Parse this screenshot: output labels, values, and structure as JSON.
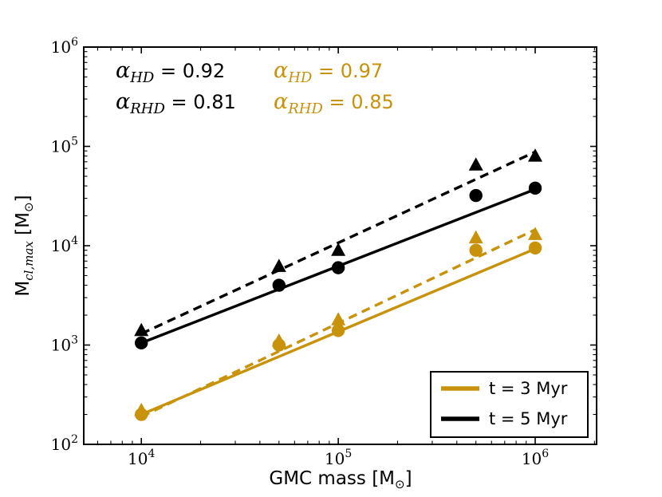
{
  "figure": {
    "background": "#ffffff",
    "axis_color": "#000000",
    "tick_label_color": "#000000"
  },
  "chart_data": {
    "type": "scatter",
    "title": "",
    "xlabel_parts": [
      {
        "t": "GMC mass [M",
        "style": "plain"
      },
      {
        "t": "⊙",
        "style": "sub"
      },
      {
        "t": "]",
        "style": "plain"
      }
    ],
    "ylabel_parts": [
      {
        "t": "M",
        "style": "plain"
      },
      {
        "t": "cl,max",
        "style": "sub-italic"
      },
      {
        "t": " [M",
        "style": "plain"
      },
      {
        "t": "⊙",
        "style": "sub"
      },
      {
        "t": "]",
        "style": "plain"
      }
    ],
    "xscale": "log",
    "yscale": "log",
    "xlim": [
      5100,
      2050000
    ],
    "ylim": [
      100,
      1000000
    ],
    "grid": false,
    "x_major_ticks": [
      {
        "value": 10000,
        "label": "10^4"
      },
      {
        "value": 100000,
        "label": "10^5"
      },
      {
        "value": 1000000,
        "label": "10^6"
      }
    ],
    "y_major_ticks": [
      {
        "value": 100,
        "label": "10^2"
      },
      {
        "value": 1000,
        "label": "10^3"
      },
      {
        "value": 10000,
        "label": "10^4"
      },
      {
        "value": 100000,
        "label": "10^5"
      },
      {
        "value": 1000000,
        "label": "10^6"
      }
    ],
    "x": [
      10000,
      50000,
      100000,
      500000,
      1000000
    ],
    "series": [
      {
        "name": "HD t = 3 Myr",
        "color": "#C8920A",
        "marker": "triangle",
        "linestyle": "dashed",
        "values": [
          220,
          1100,
          1800,
          12000,
          13000
        ],
        "fit": {
          "x": [
            10000,
            1000000
          ],
          "y": [
            190,
            14500
          ]
        },
        "alpha": "0.97"
      },
      {
        "name": "RHD t = 3 Myr",
        "color": "#C8920A",
        "marker": "circle",
        "linestyle": "solid",
        "values": [
          200,
          1000,
          1400,
          9000,
          9500
        ],
        "fit": {
          "x": [
            10000,
            1000000
          ],
          "y": [
            200,
            9300
          ]
        },
        "alpha": "0.85"
      },
      {
        "name": "HD t = 5 Myr",
        "color": "#000000",
        "marker": "triangle",
        "linestyle": "dashed",
        "values": [
          1400,
          6200,
          9000,
          65000,
          80000
        ],
        "fit": {
          "x": [
            10000,
            1000000
          ],
          "y": [
            1300,
            88000
          ]
        },
        "alpha": "0.92"
      },
      {
        "name": "RHD t = 5 Myr",
        "color": "#000000",
        "marker": "circle",
        "linestyle": "solid",
        "values": [
          1050,
          4000,
          6000,
          32000,
          38000
        ],
        "fit": {
          "x": [
            10000,
            1000000
          ],
          "y": [
            1050,
            37000
          ]
        },
        "alpha": "0.81"
      }
    ],
    "annotations": [
      {
        "symbol": "α",
        "sub": "HD",
        "eq": " = ",
        "value": "0.92",
        "color": "#000000"
      },
      {
        "symbol": "α",
        "sub": "RHD",
        "eq": " = ",
        "value": "0.81",
        "color": "#000000"
      },
      {
        "symbol": "α",
        "sub": "HD",
        "eq": " = ",
        "value": "0.97",
        "color": "#C8920A"
      },
      {
        "symbol": "α",
        "sub": "RHD",
        "eq": " = ",
        "value": "0.85",
        "color": "#C8920A"
      }
    ],
    "legend": {
      "position": "lower right",
      "items": [
        {
          "label": "t = 3 Myr",
          "color": "#C8920A"
        },
        {
          "label": "t = 5 Myr",
          "color": "#000000"
        }
      ]
    }
  }
}
